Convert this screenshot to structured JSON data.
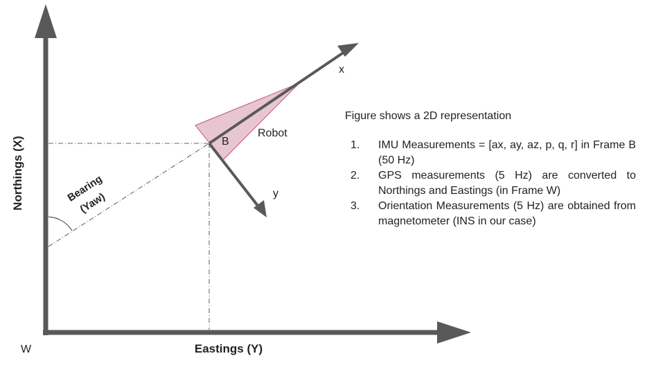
{
  "axes": {
    "vertical_label": "Northings (X)",
    "horizontal_label": "Eastings (Y)",
    "origin_label": "W",
    "axis_color": "#595959"
  },
  "robot": {
    "label": "Robot",
    "frame_label": "B",
    "x_axis_label": "x",
    "y_axis_label": "y",
    "fill_color": "#e8c5d2",
    "edge_color": "#c2527a"
  },
  "bearing": {
    "line1": "Bearing",
    "line2": "(Yaw)"
  },
  "description": {
    "intro": "Figure shows a 2D representation",
    "items": [
      {
        "num": "1.",
        "text": "IMU Measurements = [ax, ay, az, p, q, r] in Frame B (50 Hz)"
      },
      {
        "num": "2.",
        "text": "GPS measurements (5 Hz) are converted to Northings and Eastings (in Frame W)"
      },
      {
        "num": "3.",
        "text": "Orientation Measurements (5 Hz) are obtained from magnetometer (INS in our case)"
      }
    ]
  }
}
